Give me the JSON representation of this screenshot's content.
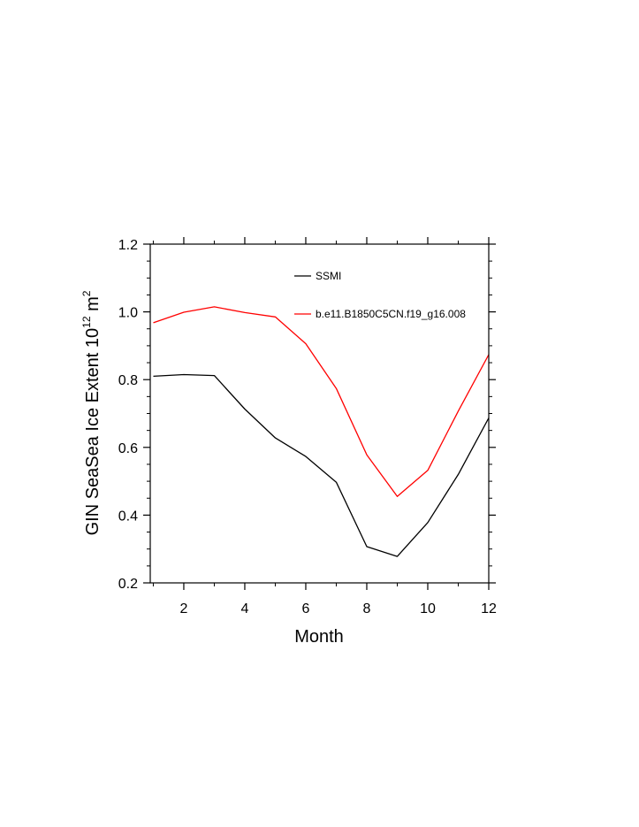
{
  "chart_data": {
    "type": "line",
    "xlabel": "Month",
    "ylabel": {
      "base": "GIN SeaSea Ice Extent 10",
      "exp1": "12",
      "mid": " m",
      "exp2": "2"
    },
    "xlim": [
      0.9,
      12
    ],
    "ylim": [
      0.2,
      1.2
    ],
    "x_ticks": [
      2,
      4,
      6,
      8,
      10,
      12
    ],
    "x_tick_labels": [
      "2",
      "4",
      "6",
      "8",
      "10",
      "12"
    ],
    "y_ticks": [
      0.2,
      0.4,
      0.6,
      0.8,
      1.0,
      1.2
    ],
    "y_tick_labels": [
      "0.2",
      "0.4",
      "0.6",
      "0.8",
      "1.0",
      "1.2"
    ],
    "legend_position": "top-right",
    "x": [
      1,
      2,
      3,
      4,
      5,
      6,
      7,
      8,
      9,
      10,
      11,
      12
    ],
    "series": [
      {
        "name": "SSMI",
        "color": "#000000",
        "values": [
          0.81,
          0.815,
          0.812,
          0.713,
          0.628,
          0.573,
          0.497,
          0.307,
          0.278,
          0.378,
          0.52,
          0.687
        ]
      },
      {
        "name": "b.e11.B1850C5CN.f19_g16.008",
        "color": "#ff0000",
        "values": [
          0.968,
          0.999,
          1.015,
          0.998,
          0.985,
          0.906,
          0.774,
          0.578,
          0.455,
          0.532,
          0.707,
          0.874
        ]
      }
    ]
  }
}
